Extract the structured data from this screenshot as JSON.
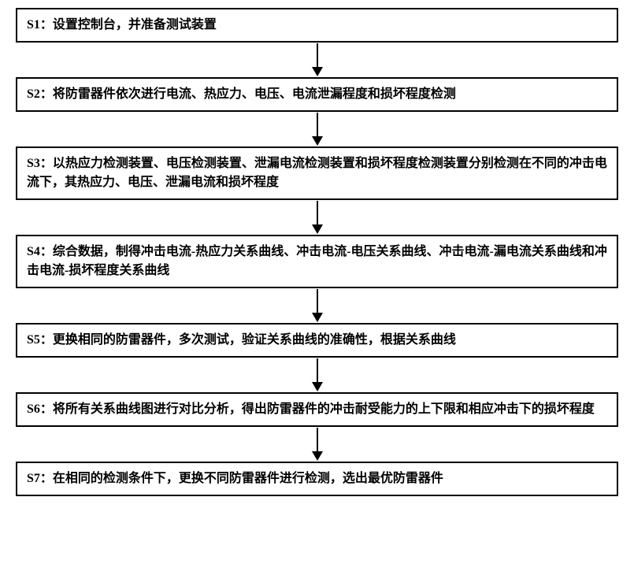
{
  "flowchart": {
    "type": "flowchart",
    "direction": "vertical",
    "box_border_color": "#000000",
    "box_border_width": 2,
    "box_background": "#ffffff",
    "text_color": "#000000",
    "font_size": 16,
    "font_weight": "bold",
    "arrow_color": "#000000",
    "arrow_line_width": 2,
    "arrow_head_size": 12,
    "arrow_gap_height": 44,
    "steps": [
      {
        "id": "S1",
        "text": "S1：设置控制台，并准备测试装置"
      },
      {
        "id": "S2",
        "text": "S2：将防雷器件依次进行电流、热应力、电压、电流泄漏程度和损坏程度检测"
      },
      {
        "id": "S3",
        "text": "S3：以热应力检测装置、电压检测装置、泄漏电流检测装置和损坏程度检测装置分别检测在不同的冲击电流下，其热应力、电压、泄漏电流和损坏程度"
      },
      {
        "id": "S4",
        "text": "S4：综合数据，制得冲击电流-热应力关系曲线、冲击电流-电压关系曲线、冲击电流-漏电流关系曲线和冲击电流-损坏程度关系曲线"
      },
      {
        "id": "S5",
        "text": "S5：更换相同的防雷器件，多次测试，验证关系曲线的准确性，根据关系曲线"
      },
      {
        "id": "S6",
        "text": "S6：将所有关系曲线图进行对比分析，得出防雷器件的冲击耐受能力的上下限和相应冲击下的损坏程度"
      },
      {
        "id": "S7",
        "text": "S7：在相同的检测条件下，更换不同防雷器件进行检测，选出最优防雷器件"
      }
    ]
  }
}
